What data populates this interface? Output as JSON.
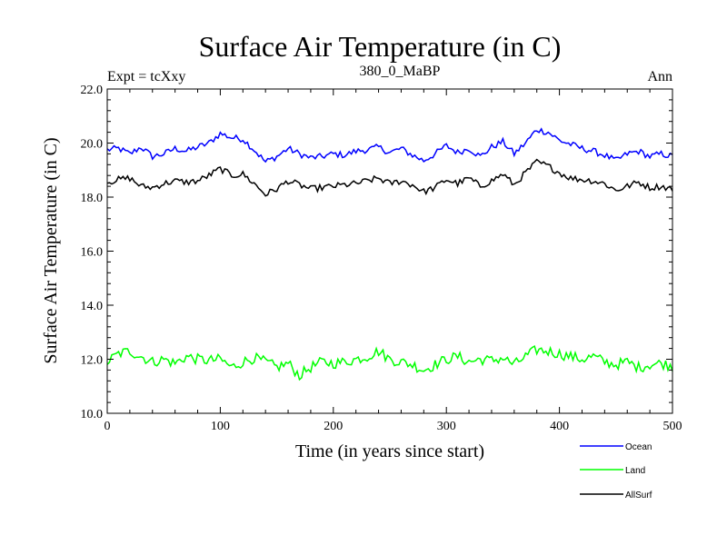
{
  "chart_data": {
    "type": "line",
    "title": "Surface Air Temperature (in C)",
    "subtitle": "380_0_MaBP",
    "left_label": "Expt = tcXxy",
    "right_label": "Ann",
    "xlabel": "Time (in years since start)",
    "ylabel": "Surface Air Temperature (in C)",
    "xlim": [
      0,
      500
    ],
    "ylim": [
      10.0,
      22.0
    ],
    "xticks": [
      0,
      100,
      200,
      300,
      400,
      500
    ],
    "xtick_labels": [
      "0",
      "100",
      "200",
      "300",
      "400",
      "500"
    ],
    "yticks": [
      10.0,
      12.0,
      14.0,
      16.0,
      18.0,
      20.0,
      22.0
    ],
    "ytick_labels": [
      "10.0",
      "12.0",
      "14.0",
      "16.0",
      "18.0",
      "20.0",
      "22.0"
    ],
    "grid": false,
    "legend_position": "bottom-right",
    "series": [
      {
        "name": "Ocean",
        "color": "#0000ff",
        "x": [
          0,
          10,
          20,
          30,
          40,
          50,
          60,
          70,
          80,
          90,
          100,
          110,
          120,
          130,
          140,
          150,
          160,
          170,
          180,
          190,
          200,
          210,
          220,
          230,
          240,
          250,
          260,
          270,
          280,
          290,
          300,
          310,
          320,
          330,
          340,
          350,
          360,
          370,
          380,
          390,
          400,
          410,
          420,
          430,
          440,
          450,
          460,
          470,
          480,
          490,
          500
        ],
        "values": [
          19.75,
          19.8,
          19.6,
          19.85,
          19.5,
          19.6,
          19.8,
          19.7,
          19.85,
          20.0,
          20.35,
          20.2,
          20.15,
          19.75,
          19.3,
          19.5,
          19.8,
          19.6,
          19.45,
          19.5,
          19.6,
          19.55,
          19.7,
          19.75,
          19.85,
          19.65,
          19.8,
          19.55,
          19.35,
          19.6,
          19.9,
          19.65,
          19.8,
          19.5,
          19.85,
          20.05,
          19.6,
          20.0,
          20.5,
          20.4,
          20.1,
          19.95,
          19.8,
          19.7,
          19.55,
          19.35,
          19.6,
          19.7,
          19.5,
          19.6,
          19.5
        ]
      },
      {
        "name": "Land",
        "color": "#00ff00",
        "x": [
          0,
          10,
          20,
          30,
          40,
          50,
          60,
          70,
          80,
          90,
          100,
          110,
          120,
          130,
          140,
          150,
          160,
          170,
          180,
          190,
          200,
          210,
          220,
          230,
          240,
          250,
          260,
          270,
          280,
          290,
          300,
          310,
          320,
          330,
          340,
          350,
          360,
          370,
          380,
          390,
          400,
          410,
          420,
          430,
          440,
          450,
          460,
          470,
          480,
          490,
          500
        ],
        "values": [
          11.9,
          12.2,
          12.3,
          12.1,
          11.9,
          12.0,
          11.85,
          12.1,
          12.0,
          11.95,
          12.0,
          11.7,
          11.9,
          12.05,
          11.9,
          11.7,
          11.85,
          11.4,
          11.7,
          11.9,
          11.85,
          11.9,
          12.0,
          12.1,
          12.3,
          12.0,
          11.9,
          11.8,
          11.6,
          11.8,
          12.0,
          12.1,
          11.9,
          12.0,
          11.95,
          12.05,
          11.8,
          12.1,
          12.35,
          12.3,
          12.2,
          12.1,
          12.0,
          12.1,
          11.9,
          11.8,
          11.9,
          11.7,
          11.8,
          11.85,
          11.75
        ]
      },
      {
        "name": "AllSurf",
        "color": "#000000",
        "x": [
          0,
          10,
          20,
          30,
          40,
          50,
          60,
          70,
          80,
          90,
          100,
          110,
          120,
          130,
          140,
          150,
          160,
          170,
          180,
          190,
          200,
          210,
          220,
          230,
          240,
          250,
          260,
          270,
          280,
          290,
          300,
          310,
          320,
          330,
          340,
          350,
          360,
          370,
          380,
          390,
          400,
          410,
          420,
          430,
          440,
          450,
          460,
          470,
          480,
          490,
          500
        ],
        "values": [
          18.55,
          18.65,
          18.7,
          18.4,
          18.35,
          18.5,
          18.6,
          18.55,
          18.6,
          18.8,
          19.05,
          18.8,
          18.85,
          18.5,
          18.1,
          18.3,
          18.6,
          18.45,
          18.3,
          18.35,
          18.4,
          18.45,
          18.5,
          18.6,
          18.7,
          18.5,
          18.6,
          18.45,
          18.2,
          18.35,
          18.65,
          18.5,
          18.7,
          18.4,
          18.6,
          18.85,
          18.45,
          18.9,
          19.3,
          19.15,
          18.9,
          18.7,
          18.65,
          18.6,
          18.5,
          18.25,
          18.4,
          18.55,
          18.35,
          18.4,
          18.3
        ]
      }
    ]
  }
}
